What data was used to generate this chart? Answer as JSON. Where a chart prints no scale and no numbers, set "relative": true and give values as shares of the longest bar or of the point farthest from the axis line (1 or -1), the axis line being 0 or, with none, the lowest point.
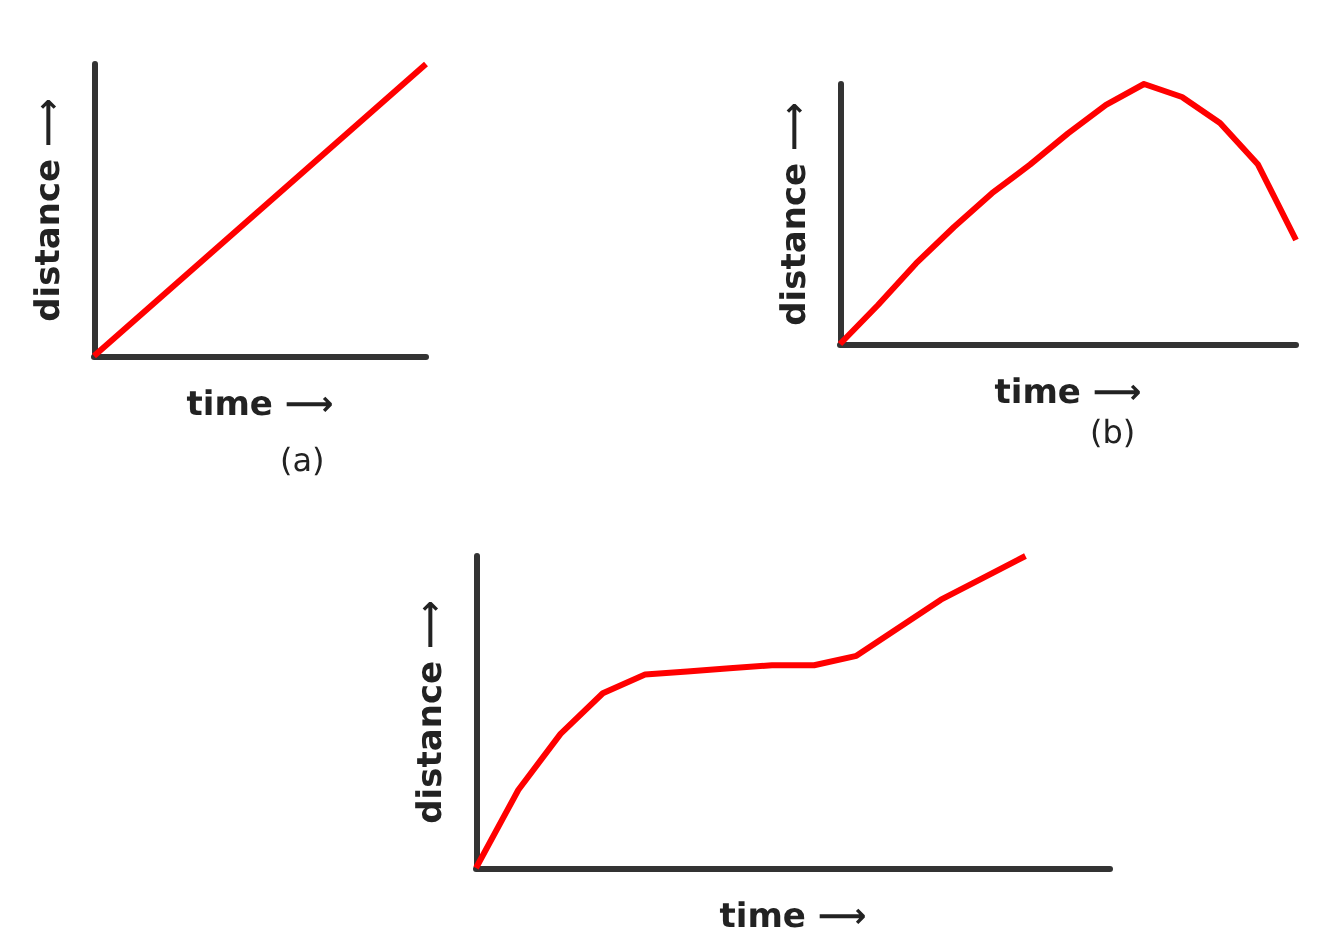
{
  "chart_data": [
    {
      "type": "line",
      "relative": true,
      "xlabel": "time ⟶",
      "ylabel": "distance ⟶",
      "annotations": [
        "(a)"
      ],
      "categories": [
        null,
        null,
        null,
        null,
        null
      ],
      "series": [
        {
          "color": "#ff0000",
          "values": [
            0,
            0.25,
            0.5,
            0.75,
            1
          ]
        }
      ],
      "marker": "none"
    },
    {
      "type": "line",
      "relative": true,
      "xlabel": "time ⟶",
      "ylabel": "distance ⟶",
      "annotations": [
        "(b)"
      ],
      "categories": [
        null,
        null,
        null,
        null,
        null,
        null,
        null,
        null,
        null,
        null,
        null,
        null,
        null
      ],
      "series": [
        {
          "color": "#ff0000",
          "values": [
            0,
            0.15,
            0.31,
            0.45,
            0.58,
            0.69,
            0.81,
            0.92,
            1,
            0.95,
            0.85,
            0.69,
            0.4
          ]
        }
      ],
      "marker": "none"
    },
    {
      "type": "line",
      "relative": true,
      "xlabel": "time ⟶",
      "ylabel": "distance ⟶",
      "categories": [
        null,
        null,
        null,
        null,
        null,
        null,
        null,
        null,
        null,
        null,
        null,
        null,
        null,
        null,
        null,
        null
      ],
      "series": [
        {
          "color": "#ff0000",
          "values": [
            0,
            0.25,
            0.43,
            0.56,
            0.62,
            0.63,
            0.64,
            0.65,
            0.65,
            0.68,
            0.77,
            0.86,
            0.93,
            1,
            null,
            null
          ]
        }
      ],
      "marker": "none"
    }
  ]
}
